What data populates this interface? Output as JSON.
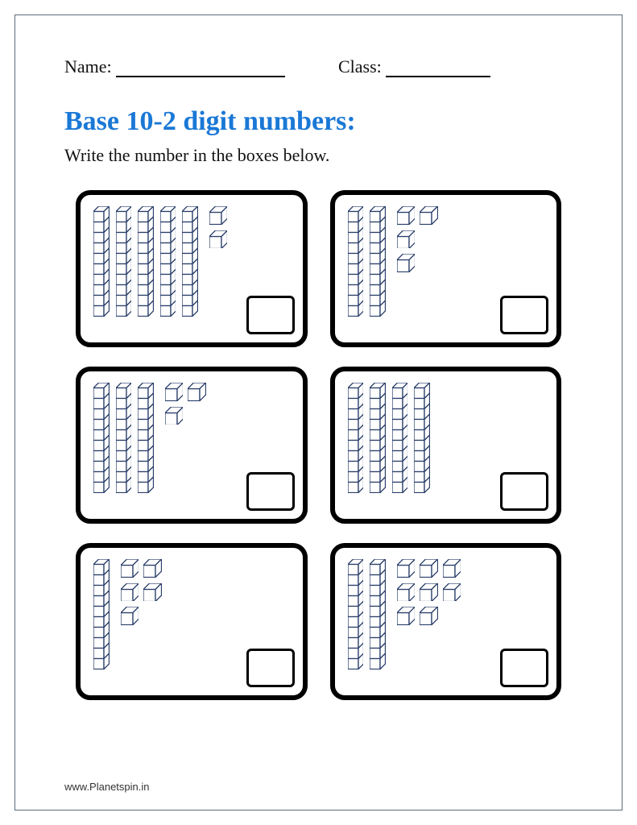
{
  "header": {
    "name_label": "Name:",
    "class_label": "Class:"
  },
  "title": "Base 10-2 digit numbers:",
  "instruction": "Write the number in the boxes below.",
  "colors": {
    "title_color": "#1a78d6",
    "border_color": "#000000",
    "cube_stroke": "#2a3f6a",
    "cube_fill": "#ffffff",
    "page_border": "#5a6b7a"
  },
  "problems": [
    {
      "tens": 5,
      "ones_layout": [
        1,
        1
      ]
    },
    {
      "tens": 2,
      "ones_layout": [
        2,
        1,
        1
      ]
    },
    {
      "tens": 3,
      "ones_layout": [
        2,
        1
      ]
    },
    {
      "tens": 4,
      "ones_layout": []
    },
    {
      "tens": 1,
      "ones_layout": [
        2,
        2,
        1
      ]
    },
    {
      "tens": 2,
      "ones_layout": [
        3,
        3,
        2
      ]
    }
  ],
  "footer": "www.Planetspin.in"
}
